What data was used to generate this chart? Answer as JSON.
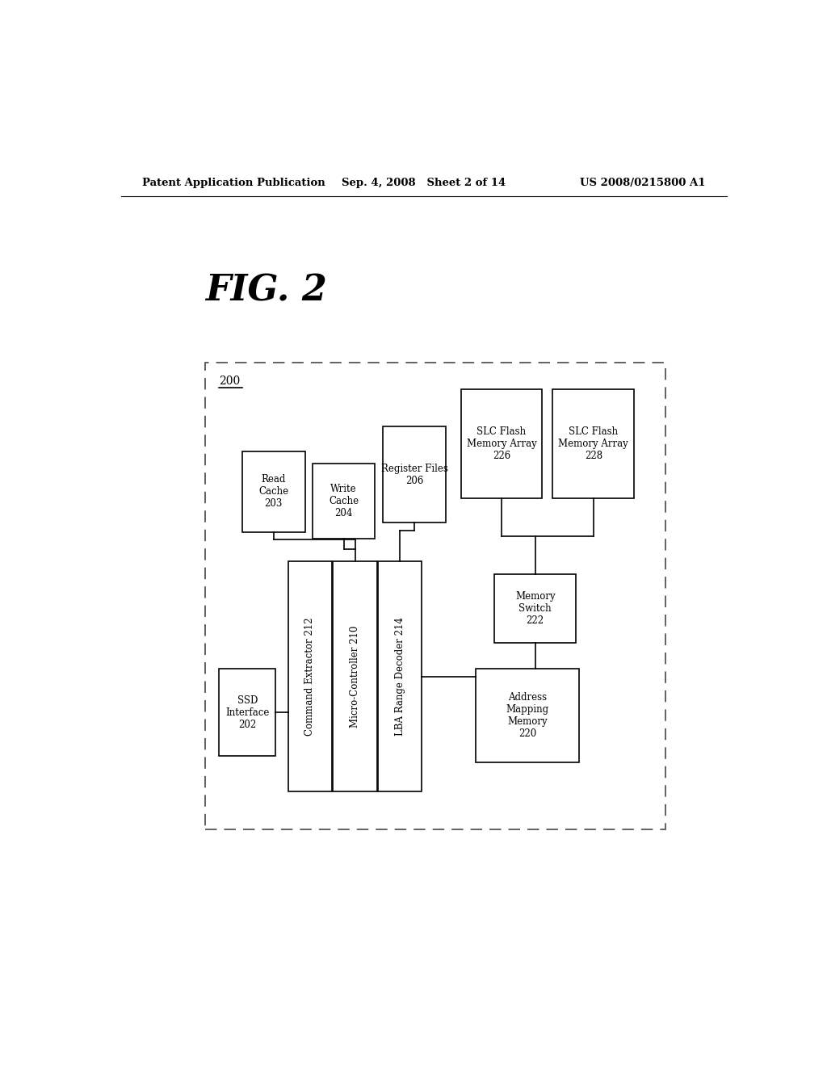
{
  "header_left": "Patent Application Publication",
  "header_mid": "Sep. 4, 2008   Sheet 2 of 14",
  "header_right": "US 2008/0215800 A1",
  "fig_label": "FIG. 2",
  "system_label": "200",
  "bg_color": "#ffffff"
}
